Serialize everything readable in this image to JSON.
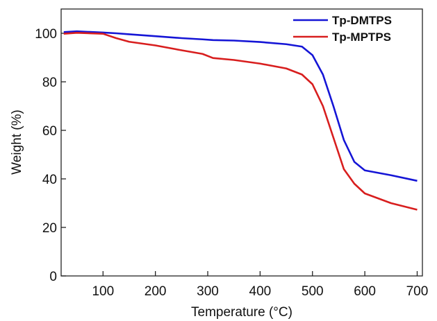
{
  "chart_data": {
    "type": "line",
    "x_label": "Temperature (°C)",
    "y_label": "Weight (%)",
    "x": [
      25,
      50,
      100,
      125,
      150,
      200,
      250,
      290,
      310,
      350,
      400,
      450,
      480,
      500,
      520,
      540,
      560,
      580,
      600,
      650,
      700
    ],
    "series": [
      {
        "name": "Tp-DMTPS",
        "color": "#1515d6",
        "values": [
          100.5,
          100.8,
          100.3,
          100.0,
          99.6,
          98.8,
          98.0,
          97.5,
          97.2,
          97.0,
          96.4,
          95.5,
          94.5,
          91.0,
          83.0,
          70.0,
          56.0,
          47.0,
          43.5,
          41.5,
          39.2
        ]
      },
      {
        "name": "Tp-MPTPS",
        "color": "#d81e1e",
        "values": [
          99.8,
          100.2,
          99.8,
          98.0,
          96.5,
          95.0,
          93.0,
          91.5,
          89.8,
          89.0,
          87.5,
          85.5,
          83.0,
          79.0,
          70.0,
          57.0,
          44.0,
          38.0,
          34.0,
          30.0,
          27.3
        ]
      }
    ],
    "xlim": [
      20,
      710
    ],
    "ylim": [
      0,
      110
    ],
    "xticks": [
      100,
      200,
      300,
      400,
      500,
      600,
      700
    ],
    "yticks": [
      0,
      20,
      40,
      60,
      80,
      100
    ],
    "legend": "top-right"
  }
}
